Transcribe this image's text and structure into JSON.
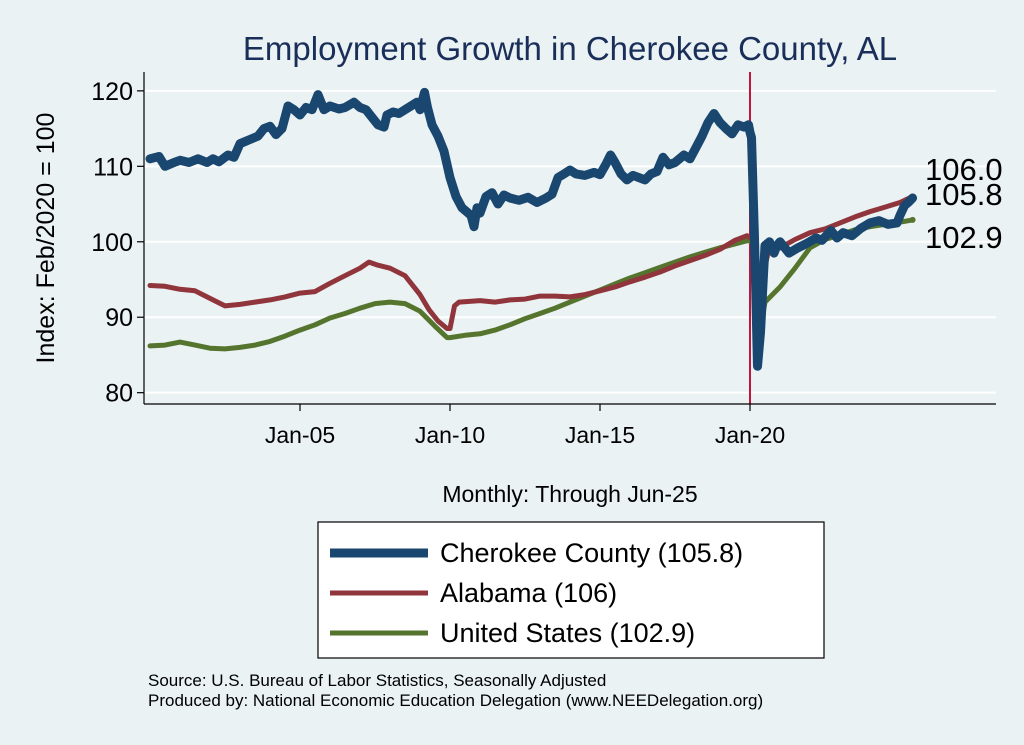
{
  "chart_data": {
    "type": "line",
    "title": "Employment Growth in Cherokee  County, AL",
    "xlabel": "Monthly: Through Jun-25",
    "ylabel": "Index: Feb/2020 = 100",
    "x_range": [
      "2000-01",
      "2025-06"
    ],
    "xlim": [
      1999.8,
      2028.2
    ],
    "ylim": [
      78.5,
      122.5
    ],
    "x_ticks": [
      {
        "label": "Jan-05",
        "x": 2005.0
      },
      {
        "label": "Jan-10",
        "x": 2010.0
      },
      {
        "label": "Jan-15",
        "x": 2015.0
      },
      {
        "label": "Jan-20",
        "x": 2020.0
      }
    ],
    "y_ticks": [
      80,
      90,
      100,
      110,
      120
    ],
    "grid": true,
    "vertical_marker": {
      "x": 2020.0,
      "color": "#c0143c"
    },
    "end_labels": [
      {
        "text": "106.0",
        "y": 106.0
      },
      {
        "text": "105.8",
        "y": 105.8
      },
      {
        "text": "102.9",
        "y": 102.9
      }
    ],
    "series": [
      {
        "name": "Cherokee  County (105.8)",
        "color": "#1a476f",
        "width": 9,
        "points": [
          [
            2000.0,
            111
          ],
          [
            2000.3,
            111.3
          ],
          [
            2000.5,
            110
          ],
          [
            2000.8,
            110.5
          ],
          [
            2001.0,
            110.8
          ],
          [
            2001.3,
            110.5
          ],
          [
            2001.6,
            111
          ],
          [
            2001.9,
            110.5
          ],
          [
            2002.1,
            111
          ],
          [
            2002.3,
            110.6
          ],
          [
            2002.6,
            111.5
          ],
          [
            2002.8,
            111.2
          ],
          [
            2003.0,
            113
          ],
          [
            2003.3,
            113.5
          ],
          [
            2003.6,
            114
          ],
          [
            2003.8,
            115
          ],
          [
            2004.0,
            115.3
          ],
          [
            2004.2,
            114.2
          ],
          [
            2004.4,
            115
          ],
          [
            2004.6,
            118
          ],
          [
            2004.8,
            117.5
          ],
          [
            2005.0,
            116.8
          ],
          [
            2005.2,
            117.8
          ],
          [
            2005.4,
            117.5
          ],
          [
            2005.6,
            119.5
          ],
          [
            2005.8,
            117.5
          ],
          [
            2006.0,
            118
          ],
          [
            2006.3,
            117.6
          ],
          [
            2006.5,
            117.8
          ],
          [
            2006.8,
            118.5
          ],
          [
            2007.0,
            117.8
          ],
          [
            2007.2,
            117.5
          ],
          [
            2007.4,
            116.5
          ],
          [
            2007.6,
            115.5
          ],
          [
            2007.8,
            115.2
          ],
          [
            2007.9,
            116.8
          ],
          [
            2008.1,
            117.2
          ],
          [
            2008.3,
            117
          ],
          [
            2008.5,
            117.5
          ],
          [
            2008.7,
            118
          ],
          [
            2008.9,
            118.5
          ],
          [
            2009.0,
            117.5
          ],
          [
            2009.15,
            119.8
          ],
          [
            2009.25,
            117.8
          ],
          [
            2009.4,
            115.5
          ],
          [
            2009.6,
            114
          ],
          [
            2009.8,
            112
          ],
          [
            2010.0,
            108.5
          ],
          [
            2010.2,
            106
          ],
          [
            2010.4,
            104.5
          ],
          [
            2010.55,
            104
          ],
          [
            2010.7,
            103.5
          ],
          [
            2010.8,
            102
          ],
          [
            2010.9,
            104.5
          ],
          [
            2011.0,
            103.8
          ],
          [
            2011.2,
            106
          ],
          [
            2011.4,
            106.5
          ],
          [
            2011.6,
            105
          ],
          [
            2011.8,
            106.2
          ],
          [
            2012.0,
            105.8
          ],
          [
            2012.3,
            105.5
          ],
          [
            2012.6,
            105.9
          ],
          [
            2012.9,
            105.2
          ],
          [
            2013.2,
            105.8
          ],
          [
            2013.4,
            106.3
          ],
          [
            2013.6,
            108.5
          ],
          [
            2013.8,
            109
          ],
          [
            2014.0,
            109.5
          ],
          [
            2014.2,
            109
          ],
          [
            2014.5,
            108.8
          ],
          [
            2014.8,
            109.2
          ],
          [
            2015.0,
            108.9
          ],
          [
            2015.2,
            110.3
          ],
          [
            2015.35,
            111.5
          ],
          [
            2015.5,
            110.5
          ],
          [
            2015.7,
            109
          ],
          [
            2015.9,
            108.2
          ],
          [
            2016.1,
            108.8
          ],
          [
            2016.3,
            108.5
          ],
          [
            2016.5,
            108.2
          ],
          [
            2016.7,
            109
          ],
          [
            2016.9,
            109.3
          ],
          [
            2017.1,
            111.2
          ],
          [
            2017.3,
            110.2
          ],
          [
            2017.5,
            110.5
          ],
          [
            2017.8,
            111.5
          ],
          [
            2018.0,
            111
          ],
          [
            2018.2,
            112.5
          ],
          [
            2018.4,
            114
          ],
          [
            2018.6,
            115.8
          ],
          [
            2018.8,
            117
          ],
          [
            2019.0,
            115.8
          ],
          [
            2019.2,
            115
          ],
          [
            2019.4,
            114.3
          ],
          [
            2019.6,
            115.5
          ],
          [
            2019.8,
            115.2
          ],
          [
            2019.95,
            115.5
          ],
          [
            2020.0,
            114.5
          ],
          [
            2020.05,
            113.8
          ],
          [
            2020.15,
            100.5
          ],
          [
            2020.25,
            83.5
          ],
          [
            2020.35,
            88
          ],
          [
            2020.5,
            99.5
          ],
          [
            2020.65,
            100
          ],
          [
            2020.8,
            98.5
          ],
          [
            2020.9,
            99.5
          ],
          [
            2021.0,
            100
          ],
          [
            2021.3,
            98.5
          ],
          [
            2021.6,
            99.2
          ],
          [
            2021.9,
            99.8
          ],
          [
            2022.2,
            100.5
          ],
          [
            2022.4,
            100.2
          ],
          [
            2022.7,
            101.5
          ],
          [
            2022.9,
            100.5
          ],
          [
            2023.1,
            101.2
          ],
          [
            2023.4,
            100.8
          ],
          [
            2023.7,
            101.8
          ],
          [
            2024.0,
            102.5
          ],
          [
            2024.3,
            102.8
          ],
          [
            2024.6,
            102.3
          ],
          [
            2024.9,
            102.5
          ],
          [
            2025.0,
            103.5
          ],
          [
            2025.15,
            104.8
          ],
          [
            2025.3,
            105.3
          ],
          [
            2025.42,
            105.8
          ]
        ]
      },
      {
        "name": "Alabama (106)",
        "color": "#90353b",
        "width": 5,
        "points": [
          [
            2000.0,
            94.2
          ],
          [
            2000.5,
            94.1
          ],
          [
            2001.0,
            93.7
          ],
          [
            2001.5,
            93.5
          ],
          [
            2002.0,
            92.5
          ],
          [
            2002.5,
            91.5
          ],
          [
            2003.0,
            91.7
          ],
          [
            2003.5,
            92
          ],
          [
            2004.0,
            92.3
          ],
          [
            2004.5,
            92.7
          ],
          [
            2005.0,
            93.2
          ],
          [
            2005.5,
            93.4
          ],
          [
            2006.0,
            94.5
          ],
          [
            2006.5,
            95.5
          ],
          [
            2007.0,
            96.5
          ],
          [
            2007.3,
            97.3
          ],
          [
            2007.6,
            96.9
          ],
          [
            2008.0,
            96.5
          ],
          [
            2008.5,
            95.5
          ],
          [
            2009.0,
            93
          ],
          [
            2009.3,
            91
          ],
          [
            2009.6,
            89.5
          ],
          [
            2009.9,
            88.5
          ],
          [
            2010.0,
            88.5
          ],
          [
            2010.15,
            91.5
          ],
          [
            2010.3,
            92
          ],
          [
            2011.0,
            92.2
          ],
          [
            2011.5,
            92
          ],
          [
            2012.0,
            92.3
          ],
          [
            2012.5,
            92.4
          ],
          [
            2013.0,
            92.8
          ],
          [
            2013.5,
            92.8
          ],
          [
            2014.0,
            92.7
          ],
          [
            2014.5,
            93
          ],
          [
            2015.0,
            93.5
          ],
          [
            2015.5,
            94
          ],
          [
            2016.0,
            94.7
          ],
          [
            2016.5,
            95.3
          ],
          [
            2017.0,
            96
          ],
          [
            2017.5,
            96.8
          ],
          [
            2018.0,
            97.5
          ],
          [
            2018.5,
            98.2
          ],
          [
            2019.0,
            99
          ],
          [
            2019.5,
            100.2
          ],
          [
            2019.9,
            100.8
          ],
          [
            2020.1,
            100.3
          ],
          [
            2020.2,
            94
          ],
          [
            2020.3,
            90.5
          ],
          [
            2020.4,
            95
          ],
          [
            2020.6,
            98.5
          ],
          [
            2021.0,
            99.2
          ],
          [
            2021.5,
            100.3
          ],
          [
            2022.0,
            101.2
          ],
          [
            2022.5,
            101.7
          ],
          [
            2023.0,
            102.5
          ],
          [
            2023.5,
            103.3
          ],
          [
            2024.0,
            104
          ],
          [
            2024.5,
            104.6
          ],
          [
            2025.0,
            105.2
          ],
          [
            2025.42,
            106.0
          ]
        ]
      },
      {
        "name": "United States (102.9)",
        "color": "#55752f",
        "width": 5,
        "points": [
          [
            2000.0,
            86.2
          ],
          [
            2000.5,
            86.3
          ],
          [
            2001.0,
            86.7
          ],
          [
            2001.5,
            86.3
          ],
          [
            2002.0,
            85.9
          ],
          [
            2002.5,
            85.8
          ],
          [
            2003.0,
            86
          ],
          [
            2003.5,
            86.3
          ],
          [
            2004.0,
            86.8
          ],
          [
            2004.5,
            87.5
          ],
          [
            2005.0,
            88.3
          ],
          [
            2005.5,
            89
          ],
          [
            2006.0,
            89.9
          ],
          [
            2006.5,
            90.5
          ],
          [
            2007.0,
            91.2
          ],
          [
            2007.5,
            91.8
          ],
          [
            2008.0,
            92
          ],
          [
            2008.5,
            91.8
          ],
          [
            2009.0,
            90.8
          ],
          [
            2009.5,
            88.8
          ],
          [
            2009.9,
            87.3
          ],
          [
            2010.0,
            87.3
          ],
          [
            2010.5,
            87.6
          ],
          [
            2011.0,
            87.8
          ],
          [
            2011.5,
            88.3
          ],
          [
            2012.0,
            89
          ],
          [
            2012.5,
            89.8
          ],
          [
            2013.0,
            90.5
          ],
          [
            2013.5,
            91.2
          ],
          [
            2014.0,
            92
          ],
          [
            2014.5,
            92.8
          ],
          [
            2015.0,
            93.6
          ],
          [
            2015.5,
            94.4
          ],
          [
            2016.0,
            95.2
          ],
          [
            2016.5,
            95.9
          ],
          [
            2017.0,
            96.6
          ],
          [
            2017.5,
            97.3
          ],
          [
            2018.0,
            98
          ],
          [
            2018.5,
            98.6
          ],
          [
            2019.0,
            99.2
          ],
          [
            2019.5,
            99.7
          ],
          [
            2019.95,
            100.2
          ],
          [
            2020.1,
            99.8
          ],
          [
            2020.2,
            88
          ],
          [
            2020.25,
            85.5
          ],
          [
            2020.35,
            88.5
          ],
          [
            2020.5,
            92
          ],
          [
            2021.0,
            94
          ],
          [
            2021.5,
            96.5
          ],
          [
            2022.0,
            99.2
          ],
          [
            2022.5,
            100.3
          ],
          [
            2023.0,
            100.9
          ],
          [
            2023.5,
            101.6
          ],
          [
            2024.0,
            102
          ],
          [
            2024.5,
            102.3
          ],
          [
            2025.0,
            102.6
          ],
          [
            2025.42,
            102.9
          ]
        ]
      }
    ],
    "legend": {
      "position": "bottom",
      "entries": [
        {
          "label": "Cherokee  County (105.8)",
          "color": "#1a476f"
        },
        {
          "label": "Alabama (106)",
          "color": "#90353b"
        },
        {
          "label": "United States (102.9)",
          "color": "#55752f"
        }
      ]
    }
  },
  "footer": {
    "source": "Source: U.S. Bureau of Labor Statistics, Seasonally Adjusted",
    "producer": "Produced by: National Economic Education Delegation (www.NEEDelegation.org)"
  }
}
